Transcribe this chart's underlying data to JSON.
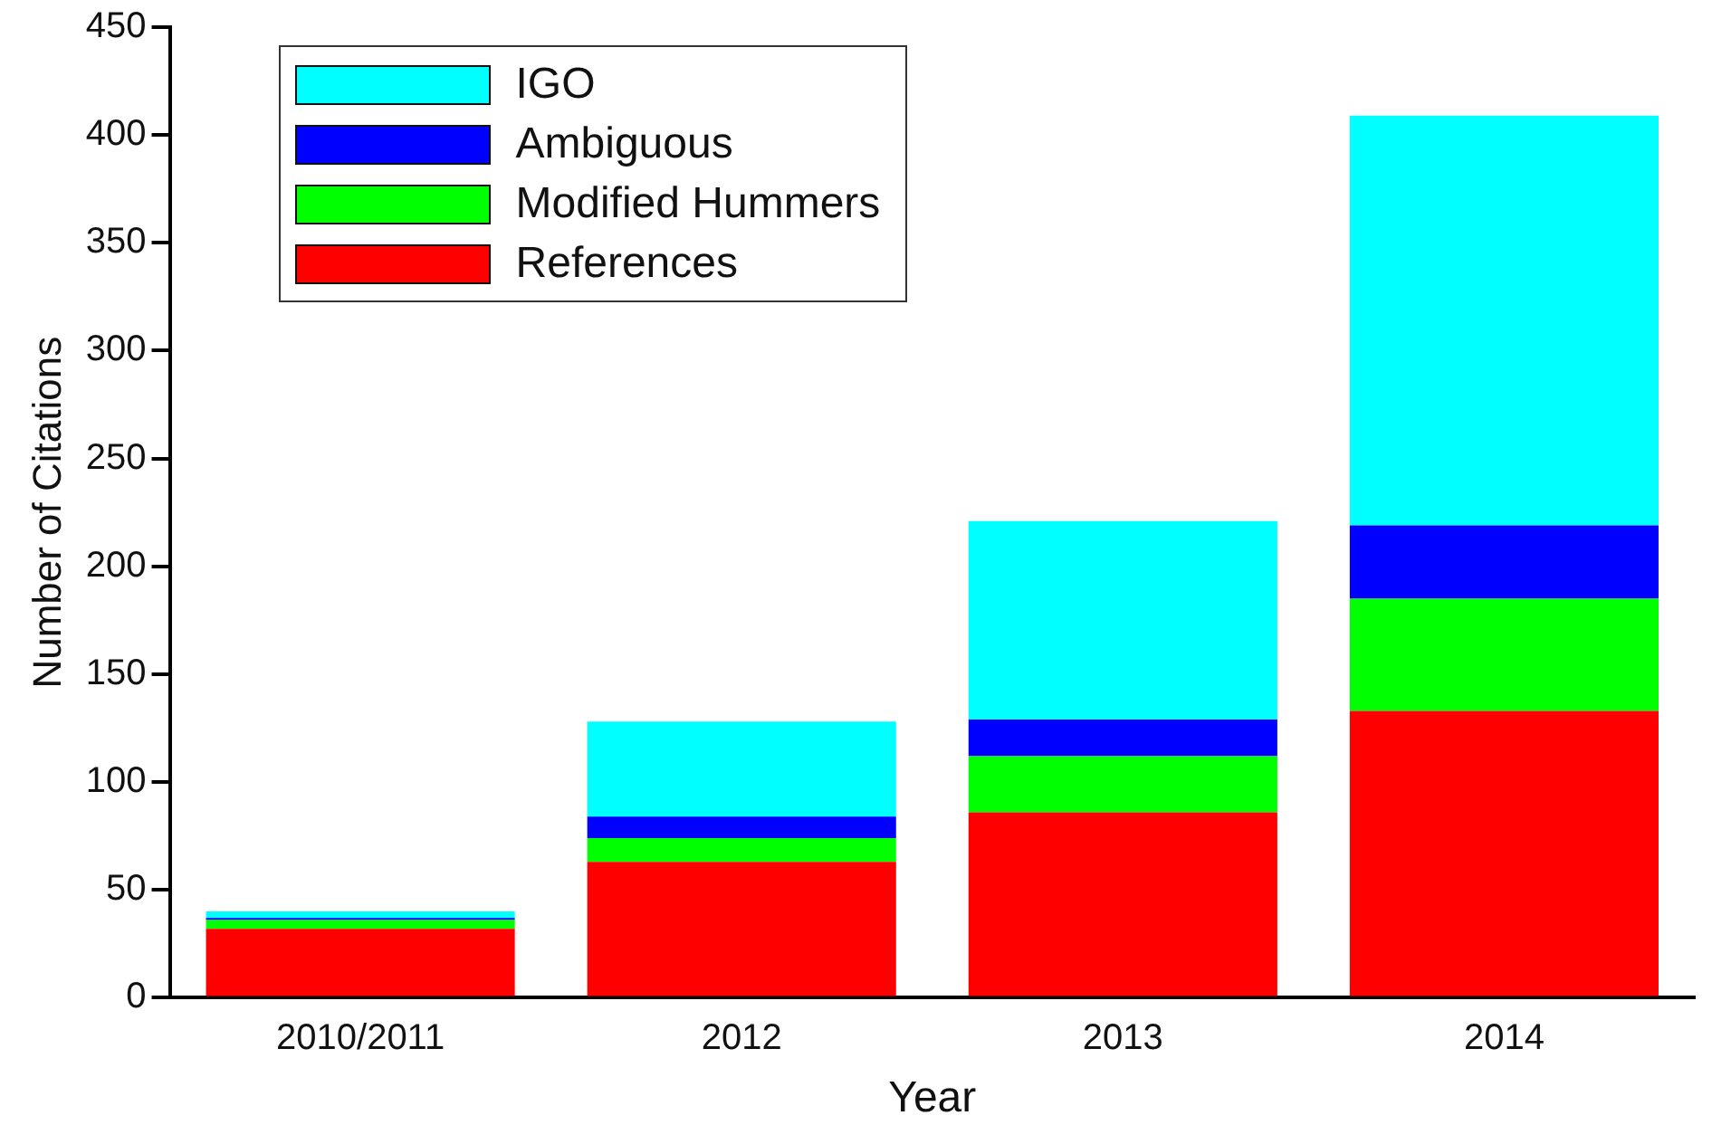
{
  "chart_data": {
    "type": "bar",
    "stacked": true,
    "xlabel": "Year",
    "ylabel": "Number of Citations",
    "categories": [
      "2010/2011",
      "2012",
      "2013",
      "2014"
    ],
    "series": [
      {
        "name": "References",
        "color": "#ff0000",
        "values": [
          32,
          63,
          86,
          133
        ]
      },
      {
        "name": "Modified Hummers",
        "color": "#00ff00",
        "values": [
          4,
          11,
          26,
          52
        ]
      },
      {
        "name": "Ambiguous",
        "color": "#0000ff",
        "values": [
          1,
          10,
          17,
          34
        ]
      },
      {
        "name": "IGO",
        "color": "#00ffff",
        "values": [
          3,
          44,
          92,
          190
        ]
      }
    ],
    "ylim": [
      0,
      450
    ],
    "yticks": [
      0,
      50,
      100,
      150,
      200,
      250,
      300,
      350,
      400,
      450
    ],
    "grid": false,
    "legend": "top left"
  }
}
